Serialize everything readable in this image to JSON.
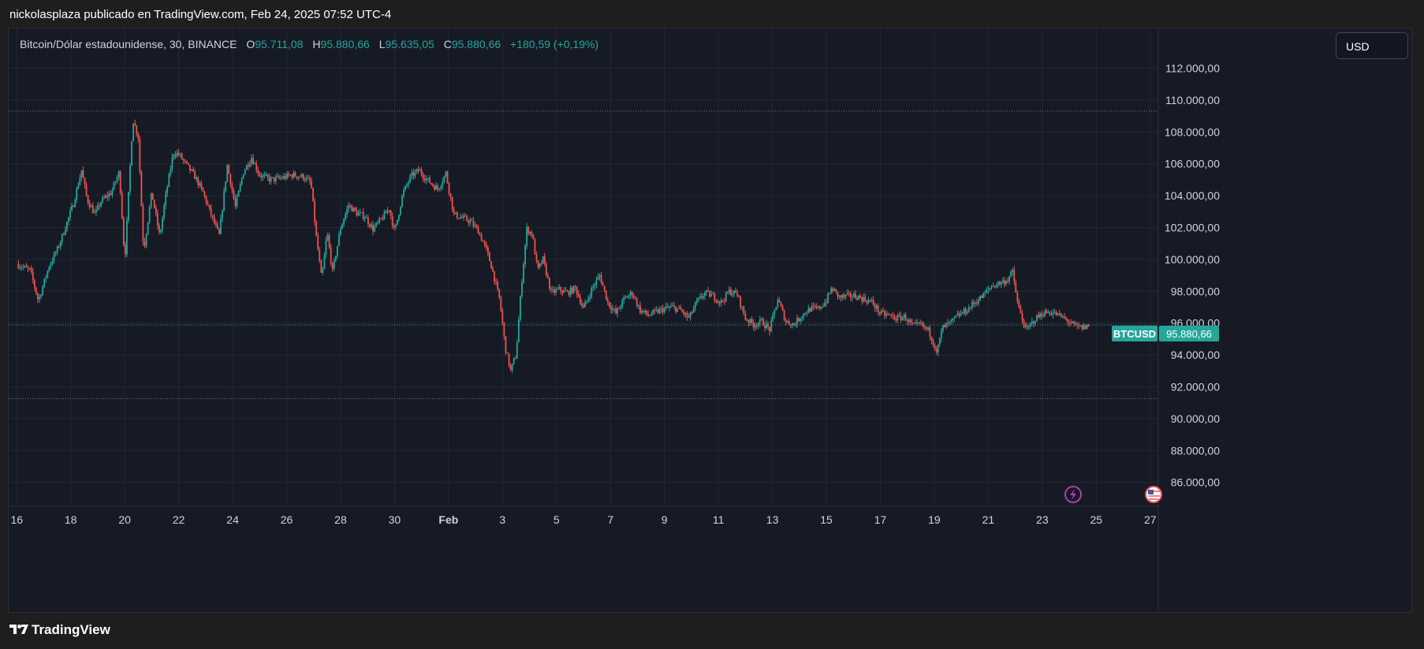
{
  "header": {
    "publisher_line": "nickolasplaza publicado en TradingView.com, Feb 24, 2025 07:52 UTC-4"
  },
  "legend": {
    "symbol_title": "Bitcoin/Dólar estadounidense, 30, BINANCE",
    "open_label": "O",
    "open_value": "95.711,08",
    "high_label": "H",
    "high_value": "95.880,66",
    "low_label": "L",
    "low_value": "95.635,05",
    "close_label": "C",
    "close_value": "95.880,66",
    "change": "+180,59 (+0,19%)"
  },
  "currency_button": {
    "label": "USD"
  },
  "price_tag": {
    "symbol": "BTCUSD",
    "value": "95.880,66"
  },
  "footer": {
    "brand": "TradingView"
  },
  "icons": {
    "events": "lightning-icon",
    "flag": "us-flag-icon",
    "logo": "tradingview-logo-icon"
  },
  "colors": {
    "background": "#161a25",
    "grid": "#232733",
    "up": "#26a69a",
    "down": "#ef5350",
    "axis_text": "#d1d4dc",
    "event_icon": "#b33bb3"
  },
  "chart_data": {
    "type": "candlestick",
    "interval": "30",
    "exchange": "BINANCE",
    "y_tick_labels": [
      "112.000,00",
      "110.000,00",
      "108.000,00",
      "106.000,00",
      "104.000,00",
      "102.000,00",
      "100.000,00",
      "98.000,00",
      "96.000,00",
      "94.000,00",
      "92.000,00",
      "90.000,00",
      "88.000,00",
      "86.000,00"
    ],
    "y_ticks": [
      112000,
      110000,
      108000,
      106000,
      104000,
      102000,
      100000,
      98000,
      96000,
      94000,
      92000,
      90000,
      88000,
      86000
    ],
    "ylim": [
      84500,
      114500
    ],
    "x_tick_labels": [
      "16",
      "18",
      "20",
      "22",
      "24",
      "26",
      "28",
      "30",
      "Feb",
      "3",
      "5",
      "7",
      "9",
      "11",
      "13",
      "15",
      "17",
      "19",
      "21",
      "23",
      "25",
      "27"
    ],
    "x_tick_days": [
      0,
      2,
      4,
      6,
      8,
      10,
      12,
      14,
      16,
      18,
      20,
      22,
      24,
      26,
      28,
      30,
      32,
      34,
      36,
      38,
      40,
      42
    ],
    "x_range_days": [
      -0.3,
      42.3
    ],
    "last_day": 39.75,
    "horizontal_levels": [
      109300,
      91250
    ],
    "current_price": 95880.66,
    "price_path": [
      [
        0,
        99700
      ],
      [
        0.5,
        99300
      ],
      [
        0.8,
        97400
      ],
      [
        1.2,
        99600
      ],
      [
        1.5,
        100600
      ],
      [
        1.8,
        102000
      ],
      [
        2.1,
        103500
      ],
      [
        2.4,
        105600
      ],
      [
        2.6,
        103800
      ],
      [
        2.9,
        102800
      ],
      [
        3.1,
        103600
      ],
      [
        3.5,
        104200
      ],
      [
        3.8,
        105500
      ],
      [
        4.0,
        99900
      ],
      [
        4.3,
        108800
      ],
      [
        4.5,
        107700
      ],
      [
        4.7,
        100500
      ],
      [
        5.0,
        104200
      ],
      [
        5.3,
        101400
      ],
      [
        5.5,
        103800
      ],
      [
        5.8,
        106700
      ],
      [
        6.0,
        106600
      ],
      [
        6.3,
        105900
      ],
      [
        6.6,
        105200
      ],
      [
        6.9,
        104200
      ],
      [
        7.2,
        102800
      ],
      [
        7.5,
        101500
      ],
      [
        7.8,
        105900
      ],
      [
        8.1,
        103300
      ],
      [
        8.4,
        105500
      ],
      [
        8.7,
        106400
      ],
      [
        9.0,
        105300
      ],
      [
        9.4,
        105000
      ],
      [
        9.8,
        105100
      ],
      [
        10.2,
        105300
      ],
      [
        10.6,
        105200
      ],
      [
        10.9,
        104800
      ],
      [
        11.1,
        101400
      ],
      [
        11.3,
        98700
      ],
      [
        11.5,
        101700
      ],
      [
        11.7,
        99200
      ],
      [
        12.0,
        102000
      ],
      [
        12.3,
        103400
      ],
      [
        12.6,
        102900
      ],
      [
        12.9,
        102700
      ],
      [
        13.2,
        101900
      ],
      [
        13.5,
        102500
      ],
      [
        13.8,
        103200
      ],
      [
        14.0,
        101700
      ],
      [
        14.3,
        104100
      ],
      [
        14.6,
        105200
      ],
      [
        14.9,
        105600
      ],
      [
        15.2,
        105000
      ],
      [
        15.6,
        104400
      ],
      [
        15.9,
        105400
      ],
      [
        16.2,
        102800
      ],
      [
        16.5,
        102600
      ],
      [
        16.8,
        102400
      ],
      [
        17.1,
        101800
      ],
      [
        17.4,
        100600
      ],
      [
        17.6,
        99500
      ],
      [
        17.9,
        97400
      ],
      [
        18.1,
        94500
      ],
      [
        18.3,
        93000
      ],
      [
        18.5,
        94000
      ],
      [
        18.7,
        98400
      ],
      [
        18.9,
        101900
      ],
      [
        19.1,
        101600
      ],
      [
        19.3,
        99300
      ],
      [
        19.5,
        100000
      ],
      [
        19.8,
        97900
      ],
      [
        20.1,
        98100
      ],
      [
        20.4,
        97900
      ],
      [
        20.7,
        98200
      ],
      [
        21.0,
        96900
      ],
      [
        21.3,
        98100
      ],
      [
        21.6,
        99000
      ],
      [
        21.9,
        97300
      ],
      [
        22.2,
        96600
      ],
      [
        22.5,
        97500
      ],
      [
        22.8,
        97900
      ],
      [
        23.1,
        96800
      ],
      [
        23.4,
        96500
      ],
      [
        23.7,
        96700
      ],
      [
        24.0,
        96900
      ],
      [
        24.3,
        97000
      ],
      [
        24.6,
        96800
      ],
      [
        24.9,
        96300
      ],
      [
        25.2,
        97300
      ],
      [
        25.5,
        97900
      ],
      [
        25.8,
        97700
      ],
      [
        26.1,
        97300
      ],
      [
        26.4,
        98000
      ],
      [
        26.7,
        97800
      ],
      [
        27.0,
        96300
      ],
      [
        27.3,
        95900
      ],
      [
        27.6,
        96100
      ],
      [
        27.9,
        95600
      ],
      [
        28.2,
        97500
      ],
      [
        28.5,
        96100
      ],
      [
        28.8,
        95900
      ],
      [
        29.1,
        96500
      ],
      [
        29.4,
        96900
      ],
      [
        29.7,
        96900
      ],
      [
        30.0,
        97400
      ],
      [
        30.2,
        98200
      ],
      [
        30.5,
        97600
      ],
      [
        30.8,
        97700
      ],
      [
        31.1,
        97700
      ],
      [
        31.4,
        97500
      ],
      [
        31.7,
        97300
      ],
      [
        32.0,
        96600
      ],
      [
        32.3,
        96500
      ],
      [
        32.6,
        96300
      ],
      [
        32.9,
        96400
      ],
      [
        33.2,
        95800
      ],
      [
        33.5,
        95900
      ],
      [
        33.8,
        95500
      ],
      [
        34.1,
        94200
      ],
      [
        34.3,
        95700
      ],
      [
        34.6,
        96000
      ],
      [
        34.9,
        96500
      ],
      [
        35.2,
        96800
      ],
      [
        35.5,
        97300
      ],
      [
        35.8,
        97700
      ],
      [
        36.1,
        98300
      ],
      [
        36.4,
        98500
      ],
      [
        36.7,
        98700
      ],
      [
        36.9,
        99200
      ],
      [
        37.1,
        97100
      ],
      [
        37.4,
        95500
      ],
      [
        37.7,
        96200
      ],
      [
        38.0,
        96600
      ],
      [
        38.3,
        96700
      ],
      [
        38.6,
        96500
      ],
      [
        38.9,
        96200
      ],
      [
        39.2,
        95800
      ],
      [
        39.5,
        95700
      ],
      [
        39.75,
        95880
      ]
    ]
  }
}
